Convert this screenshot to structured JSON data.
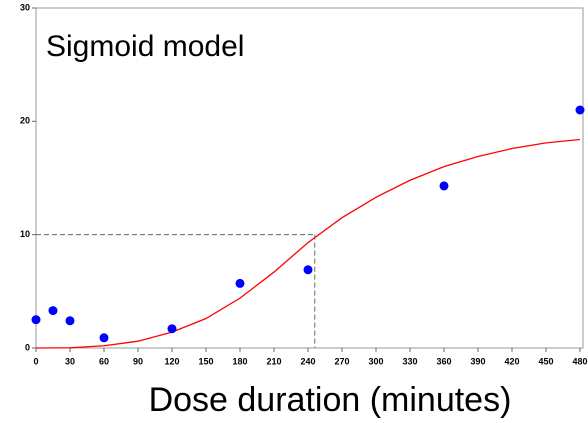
{
  "chart_data": {
    "type": "scatter",
    "annotation": "Sigmoid model",
    "x_label": "Dose duration (minutes)",
    "xlim": [
      0,
      480
    ],
    "ylim": [
      0,
      30
    ],
    "xticks": [
      0,
      30,
      60,
      90,
      120,
      150,
      180,
      210,
      240,
      270,
      300,
      330,
      360,
      390,
      420,
      450,
      480
    ],
    "yticks": [
      0,
      10,
      20,
      30
    ],
    "series": [
      {
        "mark": "dot",
        "color": "#0000ff",
        "x": [
          0,
          15,
          30,
          60,
          120,
          180,
          240,
          360,
          480
        ],
        "values": [
          2.5,
          3.3,
          2.4,
          0.9,
          1.7,
          5.7,
          6.9,
          14.3,
          21
        ]
      },
      {
        "mark": "line",
        "color": "#ff0000",
        "x": [
          0,
          30,
          60,
          90,
          120,
          150,
          180,
          210,
          240,
          270,
          300,
          330,
          360,
          390,
          420,
          450,
          480
        ],
        "values": [
          0,
          0.02,
          0.2,
          0.6,
          1.4,
          2.6,
          4.4,
          6.7,
          9.3,
          11.5,
          13.3,
          14.8,
          16,
          16.9,
          17.6,
          18.1,
          18.4
        ]
      }
    ],
    "reference": {
      "x": 246,
      "y": 10,
      "color": "#666666"
    }
  }
}
